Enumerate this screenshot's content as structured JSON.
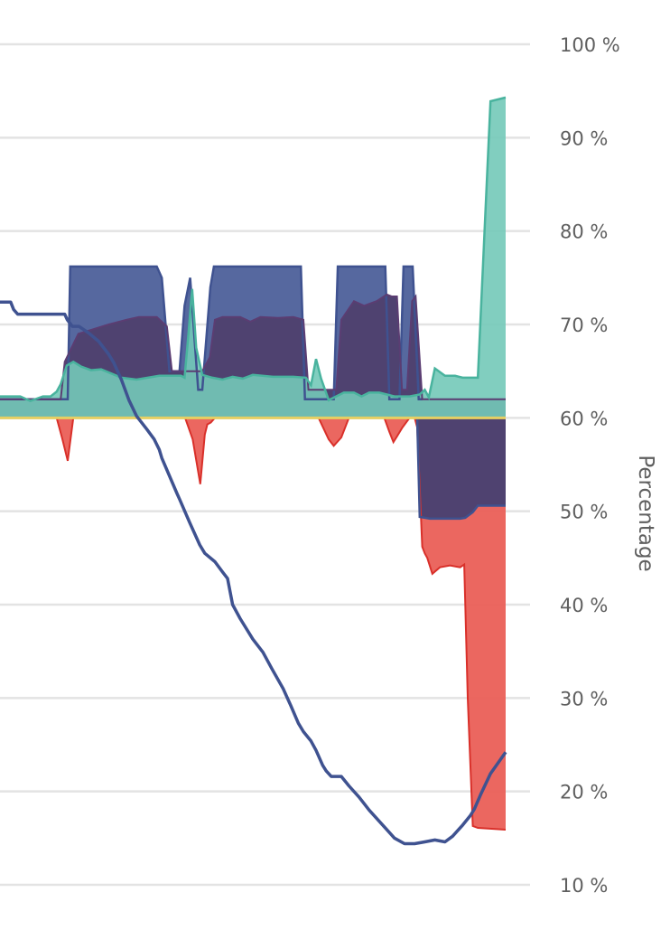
{
  "chart_data": {
    "type": "area",
    "ylabel": "Percentage",
    "ylim": [
      10,
      100
    ],
    "y_axis_side": "right",
    "y_ticks": [
      "10 %",
      "20 %",
      "30 %",
      "40 %",
      "50 %",
      "60 %",
      "70 %",
      "80 %",
      "90 %",
      "100 %"
    ],
    "y_tick_values": [
      10,
      20,
      30,
      40,
      50,
      60,
      70,
      80,
      90,
      100
    ],
    "grid": true,
    "baseline": 60,
    "x_range": [
      0,
      100
    ],
    "colors": {
      "navy_band": "#56689f",
      "navy_line": "#3f5290",
      "purple_band": "#4f4270",
      "purple_line": "#5b3d72",
      "teal_area": "#73c9b8",
      "teal_line": "#49b39e",
      "red_area": "#ea5f57",
      "red_line": "#d9302a",
      "baseline": "#e6cf63",
      "grid": "#e3e3e3",
      "tick_text": "#5f5f5f"
    },
    "series": [
      {
        "role": "navy-band",
        "x": [
          0,
          13.4,
          13.9,
          31.0,
          32.0,
          33.5,
          34.5,
          35.5,
          36.5,
          37.6,
          38.4,
          39.2,
          40.0,
          41.6,
          42.3,
          59.5,
          60.3,
          66.0,
          66.8,
          67.6,
          68.5,
          76.2,
          77.0,
          78.0,
          79.0,
          79.8,
          80.6,
          81.6,
          82.8,
          83.5
        ],
        "y": [
          62,
          62,
          76.2,
          76.2,
          75,
          65,
          65,
          65,
          72,
          75,
          69,
          63,
          63,
          74,
          76.2,
          76.2,
          62,
          62,
          76.2,
          76.2,
          76.2,
          76.2,
          62,
          62,
          62,
          76.2,
          76.2,
          76.2,
          62,
          62
        ]
      },
      {
        "role": "purple-band",
        "x": [
          0,
          12.0,
          12.8,
          15.5,
          18.5,
          21.5,
          25.0,
          27.5,
          31.0,
          33.0,
          34.0,
          36.0,
          40.0,
          41.5,
          42.5,
          44.0,
          47.5,
          49.5,
          51.5,
          55.0,
          58.0,
          60.0,
          61.0,
          64.0,
          66.5,
          67.5,
          70.0,
          72.0,
          74.5,
          76.5,
          77.5,
          78.5,
          79.5,
          80.5,
          81.5,
          82.2,
          83.5,
          100
        ],
        "y": [
          62,
          62,
          66,
          69,
          69.5,
          70,
          70.5,
          70.8,
          70.8,
          69.8,
          65,
          65,
          65,
          66.5,
          70.5,
          70.8,
          70.8,
          70.3,
          70.8,
          70.7,
          70.8,
          70.5,
          63,
          63,
          63,
          70.5,
          72.5,
          72,
          72.5,
          73.2,
          73,
          73,
          63,
          63,
          72.5,
          73,
          62,
          62
        ]
      },
      {
        "role": "teal-area",
        "x": [
          0,
          4.0,
          6.0,
          8.5,
          10.0,
          11.2,
          12.0,
          13.2,
          14.5,
          16.0,
          18.0,
          20.0,
          24.0,
          27.0,
          31.5,
          34.0,
          35.8,
          36.5,
          37.2,
          38.0,
          38.8,
          40.0,
          42.0,
          44.0,
          46.0,
          48.0,
          50.0,
          54.0,
          58.0,
          60.5,
          61.5,
          62.5,
          63.5,
          65.0,
          68.0,
          70.0,
          71.5,
          73.0,
          75.0,
          78.0,
          81.0,
          83.0,
          84.0,
          84.8,
          86.0,
          88.0,
          90.0,
          91.5,
          94.5,
          97.0,
          100
        ],
        "y": [
          62.3,
          62.3,
          61.8,
          62.3,
          62.3,
          62.8,
          63.6,
          65.6,
          66,
          65.5,
          65.1,
          65.2,
          64.3,
          64.1,
          64.5,
          64.5,
          64.5,
          64.3,
          68.5,
          73.8,
          67.5,
          64.6,
          64.3,
          64.1,
          64.4,
          64.2,
          64.6,
          64.4,
          64.4,
          64.3,
          63.5,
          66.3,
          64.2,
          61.9,
          62.7,
          62.7,
          62.3,
          62.7,
          62.7,
          62.3,
          62.3,
          62.5,
          63.0,
          62.2,
          65.3,
          64.5,
          64.5,
          64.3,
          64.3,
          93.9,
          94.3
        ]
      },
      {
        "role": "red-area",
        "x": [
          0,
          11.2,
          12.3,
          13.4,
          14.5,
          36.6,
          38.1,
          39.6,
          40.5,
          41.0,
          41.7,
          42.5,
          63.0,
          65.0,
          66.0,
          67.5,
          69.0,
          76.0,
          77.0,
          77.8,
          78.5,
          79.5,
          81.0,
          82.0,
          82.5,
          83.5,
          84.0,
          84.5,
          85.5,
          87.0,
          89.0,
          91.0,
          91.8,
          92.5,
          93.5,
          94.5,
          100
        ],
        "y": [
          60,
          60,
          57.8,
          55.4,
          60,
          60,
          57.7,
          52.9,
          58.2,
          59.3,
          59.5,
          60,
          60,
          57.7,
          57.0,
          57.9,
          60,
          60,
          58.5,
          57.4,
          58.0,
          58.9,
          60,
          60,
          59,
          46.2,
          45.5,
          45.0,
          43.3,
          44.0,
          44.2,
          44.0,
          44.3,
          30.0,
          16.3,
          16.1,
          15.9
        ]
      },
      {
        "role": "purple-negative",
        "x": [
          81.5,
          82.5,
          83.0,
          85.0,
          88.0,
          91.0,
          92.0,
          93.5,
          94.5,
          96.0,
          100
        ],
        "y": [
          60,
          60,
          49.4,
          49.2,
          49.2,
          49.2,
          49.3,
          49.9,
          50.6,
          50.6,
          50.6
        ]
      },
      {
        "role": "navy-line",
        "x": [
          0,
          2.1,
          2.7,
          3.5,
          6.0,
          9.0,
          11.0,
          12.8,
          13.3,
          14.3,
          15.6,
          17.5,
          19.5,
          21.5,
          22.5,
          24.0,
          25.5,
          27.0,
          29.0,
          30.5,
          31.5,
          32.0,
          35.0,
          35.5,
          37.5,
          39.5,
          40.5,
          42.5,
          44.0,
          45.0,
          46.0,
          47.5,
          50.0,
          52.0,
          53.8,
          56.0,
          57.5,
          59.0,
          60.0,
          61.5,
          62.5,
          63.8,
          64.5,
          65.5,
          66.5,
          67.5,
          69.0,
          71.0,
          73.0,
          75.0,
          77.0,
          78.0,
          80.0,
          82.0,
          84.0,
          86.0,
          88.0,
          89.5,
          91.5,
          93.0,
          93.8,
          95.0,
          97.0,
          100
        ],
        "y": [
          72.4,
          72.4,
          71.6,
          71.1,
          71.1,
          71.1,
          71.1,
          71.1,
          70.5,
          69.8,
          69.8,
          69.1,
          68.2,
          66.8,
          65.9,
          64.1,
          61.9,
          60.2,
          58.8,
          57.7,
          56.6,
          55.7,
          51.9,
          51.3,
          48.8,
          46.4,
          45.5,
          44.6,
          43.5,
          42.8,
          40.0,
          38.5,
          36.3,
          34.9,
          33.1,
          31.0,
          29.2,
          27.3,
          26.4,
          25.4,
          24.4,
          22.8,
          22.2,
          21.6,
          21.6,
          21.6,
          20.6,
          19.4,
          18.0,
          16.8,
          15.6,
          15.0,
          14.4,
          14.4,
          14.6,
          14.8,
          14.6,
          15.2,
          16.4,
          17.4,
          18.1,
          19.6,
          21.9,
          24.2
        ]
      }
    ]
  }
}
